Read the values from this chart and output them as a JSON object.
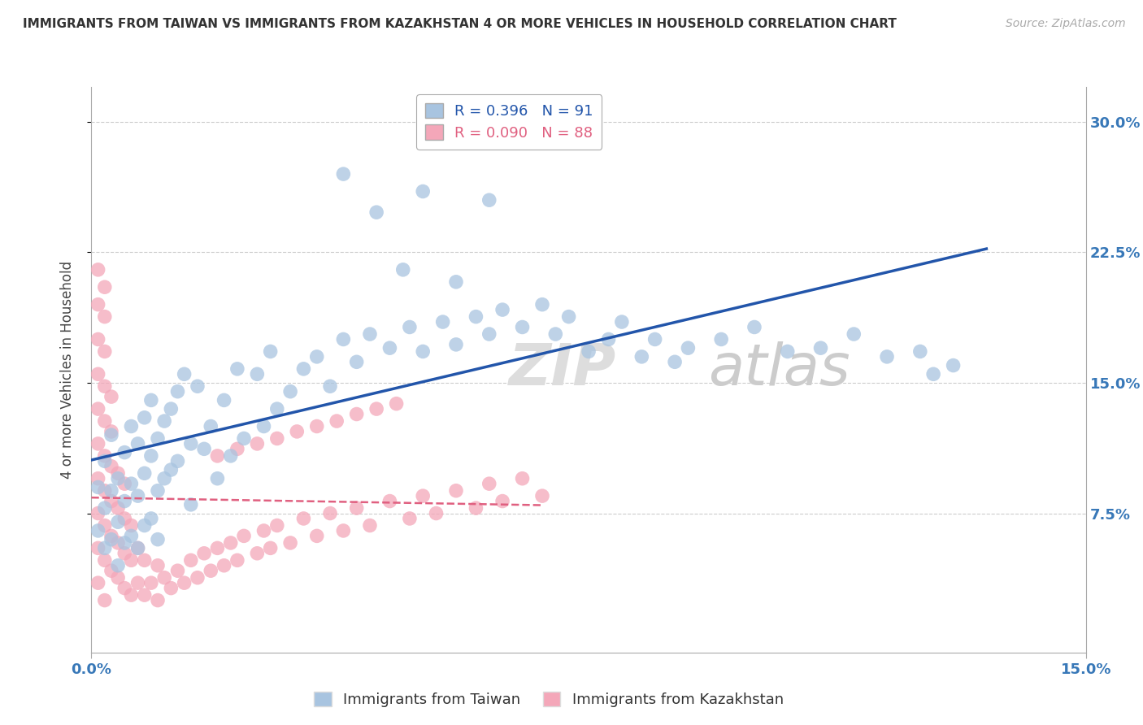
{
  "title": "IMMIGRANTS FROM TAIWAN VS IMMIGRANTS FROM KAZAKHSTAN 4 OR MORE VEHICLES IN HOUSEHOLD CORRELATION CHART",
  "source": "Source: ZipAtlas.com",
  "ylabel": "4 or more Vehicles in Household",
  "ytick_labels": [
    "7.5%",
    "15.0%",
    "22.5%",
    "30.0%"
  ],
  "ytick_values": [
    0.075,
    0.15,
    0.225,
    0.3
  ],
  "xlim": [
    0.0,
    0.15
  ],
  "ylim": [
    -0.005,
    0.32
  ],
  "taiwan_R": 0.396,
  "taiwan_N": 91,
  "kazakhstan_R": 0.09,
  "kazakhstan_N": 88,
  "taiwan_color": "#a8c4e0",
  "kazakhstan_color": "#f4a7b9",
  "taiwan_line_color": "#2255aa",
  "kazakhstan_line_color": "#e06080",
  "watermark_zip": "ZIP",
  "watermark_atlas": "atlas",
  "legend_taiwan": "Immigrants from Taiwan",
  "legend_kazakhstan": "Immigrants from Kazakhstan",
  "taiwan_scatter_x": [
    0.001,
    0.001,
    0.002,
    0.002,
    0.002,
    0.003,
    0.003,
    0.003,
    0.004,
    0.004,
    0.004,
    0.005,
    0.005,
    0.005,
    0.006,
    0.006,
    0.006,
    0.007,
    0.007,
    0.007,
    0.008,
    0.008,
    0.008,
    0.009,
    0.009,
    0.009,
    0.01,
    0.01,
    0.01,
    0.011,
    0.011,
    0.012,
    0.012,
    0.013,
    0.013,
    0.014,
    0.015,
    0.015,
    0.016,
    0.017,
    0.018,
    0.019,
    0.02,
    0.021,
    0.022,
    0.023,
    0.025,
    0.026,
    0.027,
    0.028,
    0.03,
    0.032,
    0.034,
    0.036,
    0.038,
    0.04,
    0.042,
    0.045,
    0.048,
    0.05,
    0.053,
    0.055,
    0.058,
    0.06,
    0.062,
    0.065,
    0.068,
    0.07,
    0.072,
    0.075,
    0.078,
    0.08,
    0.083,
    0.085,
    0.088,
    0.09,
    0.095,
    0.1,
    0.105,
    0.11,
    0.115,
    0.12,
    0.125,
    0.127,
    0.038,
    0.043,
    0.047,
    0.05,
    0.055,
    0.06,
    0.13
  ],
  "taiwan_scatter_y": [
    0.09,
    0.065,
    0.105,
    0.078,
    0.055,
    0.12,
    0.088,
    0.06,
    0.095,
    0.07,
    0.045,
    0.11,
    0.082,
    0.058,
    0.125,
    0.092,
    0.062,
    0.115,
    0.085,
    0.055,
    0.13,
    0.098,
    0.068,
    0.14,
    0.108,
    0.072,
    0.118,
    0.088,
    0.06,
    0.128,
    0.095,
    0.135,
    0.1,
    0.145,
    0.105,
    0.155,
    0.115,
    0.08,
    0.148,
    0.112,
    0.125,
    0.095,
    0.14,
    0.108,
    0.158,
    0.118,
    0.155,
    0.125,
    0.168,
    0.135,
    0.145,
    0.158,
    0.165,
    0.148,
    0.175,
    0.162,
    0.178,
    0.17,
    0.182,
    0.168,
    0.185,
    0.172,
    0.188,
    0.178,
    0.192,
    0.182,
    0.195,
    0.178,
    0.188,
    0.168,
    0.175,
    0.185,
    0.165,
    0.175,
    0.162,
    0.17,
    0.175,
    0.182,
    0.168,
    0.17,
    0.178,
    0.165,
    0.168,
    0.155,
    0.27,
    0.248,
    0.215,
    0.26,
    0.208,
    0.255,
    0.16
  ],
  "kazakhstan_scatter_x": [
    0.001,
    0.001,
    0.001,
    0.001,
    0.001,
    0.001,
    0.001,
    0.001,
    0.001,
    0.001,
    0.002,
    0.002,
    0.002,
    0.002,
    0.002,
    0.002,
    0.002,
    0.002,
    0.002,
    0.002,
    0.003,
    0.003,
    0.003,
    0.003,
    0.003,
    0.003,
    0.004,
    0.004,
    0.004,
    0.004,
    0.005,
    0.005,
    0.005,
    0.005,
    0.006,
    0.006,
    0.006,
    0.007,
    0.007,
    0.008,
    0.008,
    0.009,
    0.01,
    0.01,
    0.011,
    0.012,
    0.013,
    0.014,
    0.015,
    0.016,
    0.017,
    0.018,
    0.019,
    0.02,
    0.021,
    0.022,
    0.023,
    0.025,
    0.026,
    0.027,
    0.028,
    0.03,
    0.032,
    0.034,
    0.036,
    0.038,
    0.04,
    0.042,
    0.045,
    0.048,
    0.05,
    0.052,
    0.055,
    0.058,
    0.06,
    0.062,
    0.065,
    0.068,
    0.019,
    0.022,
    0.025,
    0.028,
    0.031,
    0.034,
    0.037,
    0.04,
    0.043,
    0.046
  ],
  "kazakhstan_scatter_y": [
    0.055,
    0.075,
    0.095,
    0.115,
    0.135,
    0.155,
    0.175,
    0.195,
    0.215,
    0.035,
    0.048,
    0.068,
    0.088,
    0.108,
    0.128,
    0.148,
    0.168,
    0.188,
    0.025,
    0.205,
    0.042,
    0.062,
    0.082,
    0.102,
    0.122,
    0.142,
    0.038,
    0.058,
    0.078,
    0.098,
    0.032,
    0.052,
    0.072,
    0.092,
    0.028,
    0.048,
    0.068,
    0.035,
    0.055,
    0.028,
    0.048,
    0.035,
    0.025,
    0.045,
    0.038,
    0.032,
    0.042,
    0.035,
    0.048,
    0.038,
    0.052,
    0.042,
    0.055,
    0.045,
    0.058,
    0.048,
    0.062,
    0.052,
    0.065,
    0.055,
    0.068,
    0.058,
    0.072,
    0.062,
    0.075,
    0.065,
    0.078,
    0.068,
    0.082,
    0.072,
    0.085,
    0.075,
    0.088,
    0.078,
    0.092,
    0.082,
    0.095,
    0.085,
    0.108,
    0.112,
    0.115,
    0.118,
    0.122,
    0.125,
    0.128,
    0.132,
    0.135,
    0.138
  ]
}
